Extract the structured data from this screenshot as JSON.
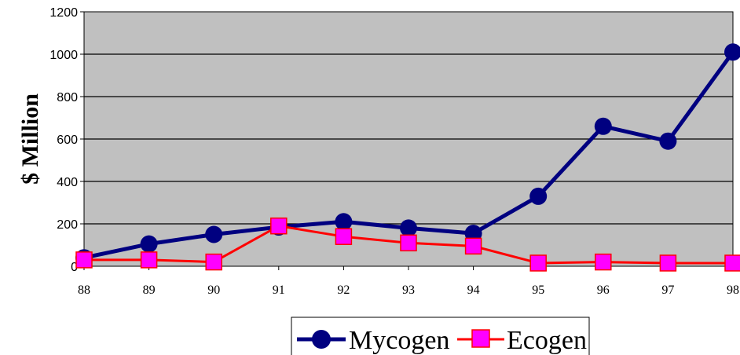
{
  "chart_data": {
    "type": "line",
    "title": "",
    "xlabel": "",
    "ylabel": "$ Million",
    "categories": [
      "88",
      "89",
      "90",
      "91",
      "92",
      "93",
      "94",
      "95",
      "96",
      "97",
      "98"
    ],
    "yticks": [
      "0",
      "200",
      "400",
      "600",
      "800",
      "1000",
      "1200"
    ],
    "ylim": [
      0,
      1200
    ],
    "grid": true,
    "plot_background": "#c0c0c0",
    "legend_position": "bottom-center",
    "series": [
      {
        "name": "Mycogen",
        "color": "#000080",
        "marker": "circle",
        "values": [
          40,
          105,
          150,
          185,
          210,
          180,
          155,
          330,
          660,
          590,
          1010
        ]
      },
      {
        "name": "Ecogen",
        "color": "#ff0000",
        "marker_fill": "#ff00ff",
        "marker": "square",
        "values": [
          30,
          30,
          20,
          190,
          140,
          110,
          95,
          15,
          20,
          15,
          15
        ]
      }
    ]
  }
}
